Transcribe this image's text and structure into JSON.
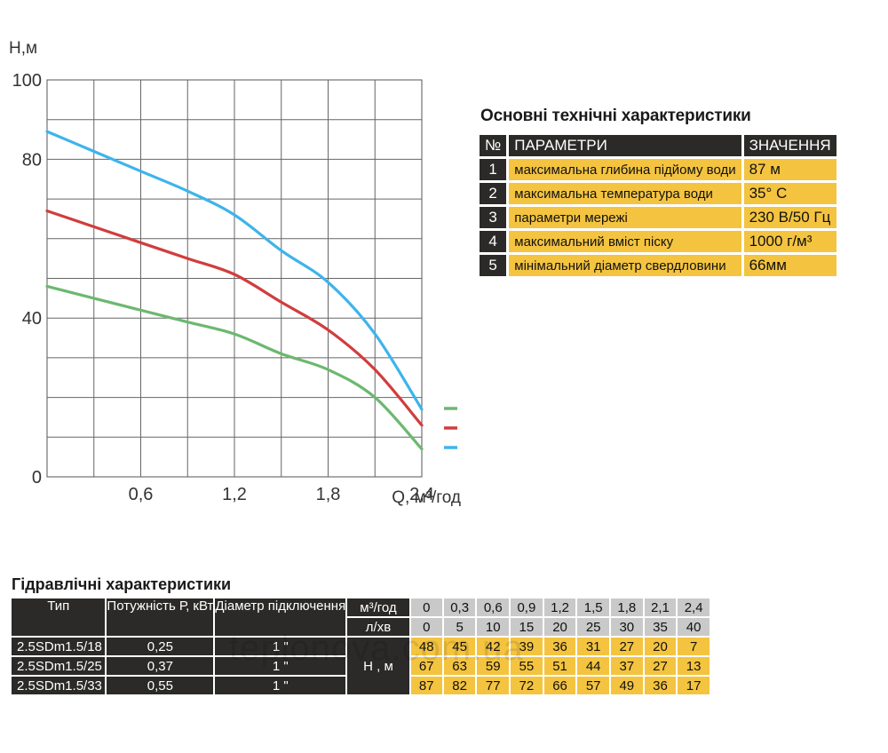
{
  "chart_data": {
    "type": "line",
    "xlabel": "Q, м³/год",
    "ylabel": "Н,м",
    "xlim": [
      0,
      2.4
    ],
    "ylim": [
      0,
      100
    ],
    "x_ticks": [
      "0,6",
      "1,2",
      "1,8",
      "2,4"
    ],
    "y_ticks": [
      "100",
      "80",
      "40",
      "0"
    ],
    "grid": true,
    "legend_position": "right",
    "x": [
      0,
      0.3,
      0.6,
      0.9,
      1.2,
      1.5,
      1.8,
      2.1,
      2.4
    ],
    "series": [
      {
        "name": "2.5SDm1.5/18",
        "color": "#6cb86f",
        "values": [
          48,
          45,
          42,
          39,
          36,
          31,
          27,
          20,
          7
        ]
      },
      {
        "name": "2.5SDm1.5/25",
        "color": "#d13d3d",
        "values": [
          67,
          63,
          59,
          55,
          51,
          44,
          37,
          27,
          13
        ]
      },
      {
        "name": "2.5SDm1.5/33",
        "color": "#3db4ec",
        "values": [
          87,
          82,
          77,
          72,
          66,
          57,
          49,
          36,
          17
        ]
      }
    ]
  },
  "specs": {
    "title": "Основні технічні характеристики",
    "header": {
      "num": "№",
      "param": "ПАРАМЕТРИ",
      "value": "ЗНАЧЕННЯ"
    },
    "rows": [
      {
        "num": "1",
        "param": "максимальна глибина підйому води",
        "value": "87 м"
      },
      {
        "num": "2",
        "param": "максимальна температура води",
        "value": "35° С"
      },
      {
        "num": "3",
        "param": "параметри мережі",
        "value": "230 В/50 Гц"
      },
      {
        "num": "4",
        "param": "максимальний вміст піску",
        "value": "1000 г/м³"
      },
      {
        "num": "5",
        "param": "мінімальний діаметр свердловини",
        "value": "66мм"
      }
    ]
  },
  "hydro": {
    "title": "Гідравлічні характеристики",
    "headers": {
      "type": "Тип",
      "power": "Потужність Р, кВт",
      "diameter": "Діаметр підключення"
    },
    "flow_unit_m3": "м³/год",
    "flow_unit_l": "л/хв",
    "head_unit": "Н , м",
    "flow_m3": [
      "0",
      "0,3",
      "0,6",
      "0,9",
      "1,2",
      "1,5",
      "1,8",
      "2,1",
      "2,4"
    ],
    "flow_l": [
      "0",
      "5",
      "10",
      "15",
      "20",
      "25",
      "30",
      "35",
      "40"
    ],
    "rows": [
      {
        "type": "2.5SDm1.5/18",
        "power": "0,25",
        "diameter": "1 \"",
        "heads": [
          "48",
          "45",
          "42",
          "39",
          "36",
          "31",
          "27",
          "20",
          "7"
        ]
      },
      {
        "type": "2.5SDm1.5/25",
        "power": "0,37",
        "diameter": "1 \"",
        "heads": [
          "67",
          "63",
          "59",
          "55",
          "51",
          "44",
          "37",
          "27",
          "13"
        ]
      },
      {
        "type": "2.5SDm1.5/33",
        "power": "0,55",
        "diameter": "1 \"",
        "heads": [
          "87",
          "82",
          "77",
          "72",
          "66",
          "57",
          "49",
          "36",
          "17"
        ]
      }
    ]
  },
  "watermark": "teplonova.com.ua"
}
